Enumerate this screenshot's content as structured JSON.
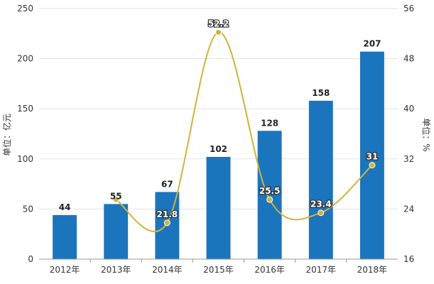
{
  "chart_data": {
    "type": "bar",
    "categories": [
      "2012年",
      "2013年",
      "2014年",
      "2015年",
      "2016年",
      "2017年",
      "2018年"
    ],
    "series": [
      {
        "type": "bar",
        "axis": "left",
        "values": [
          44,
          55,
          67,
          102,
          128,
          158,
          207
        ]
      },
      {
        "type": "line",
        "axis": "right",
        "values": [
          null,
          25.5,
          21.8,
          52.2,
          25.5,
          23.4,
          31
        ]
      }
    ],
    "bar_labels": [
      "44",
      "55",
      "67",
      "102",
      "128",
      "158",
      "207"
    ],
    "line_labels": [
      "",
      "",
      "21.8",
      "52.2",
      "25.5",
      "23.4",
      "31"
    ],
    "ylabel": "单位：亿元",
    "ylabel_right": "单位：%",
    "ylim": [
      0,
      250
    ],
    "ylim_right": [
      16,
      56
    ],
    "yticks": [
      "0",
      "50",
      "100",
      "150",
      "200",
      "250"
    ],
    "yticks_right": [
      "16",
      "24",
      "32",
      "40",
      "48",
      "56"
    ],
    "grid": true,
    "colors": {
      "bar": "#1b75bc",
      "line": "#d4b13a",
      "grid": "#e3e3e3",
      "axis": "#999999"
    }
  }
}
